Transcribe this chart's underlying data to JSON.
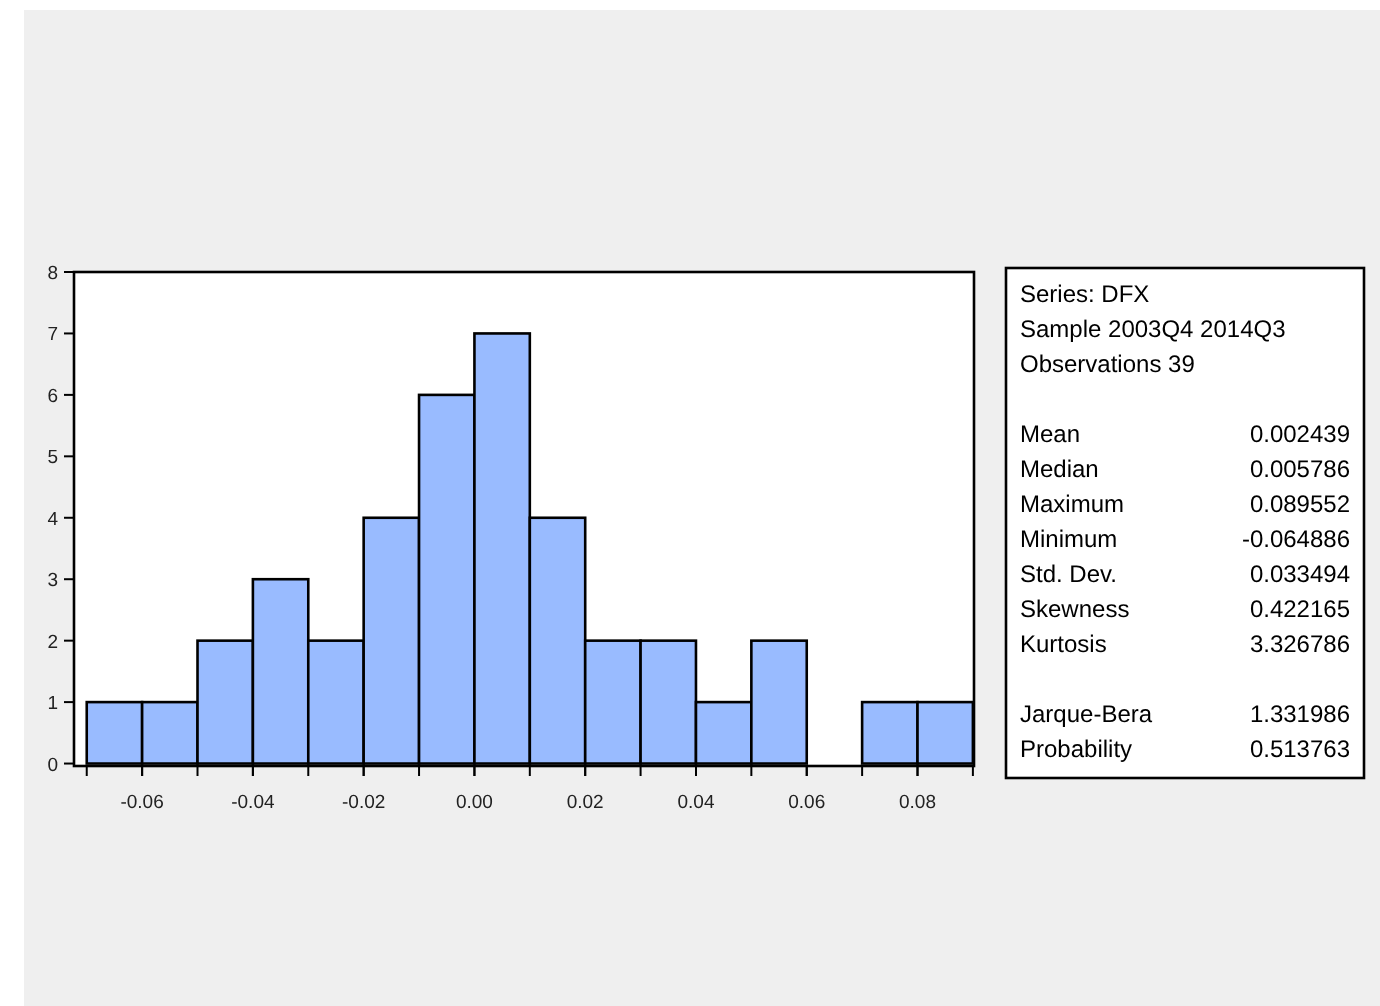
{
  "chart_data": {
    "type": "histogram",
    "bins": [
      -0.07,
      -0.06,
      -0.05,
      -0.04,
      -0.03,
      -0.02,
      -0.01,
      0,
      0.01,
      0.02,
      0.03,
      0.04,
      0.05,
      0.06,
      0.07,
      0.08,
      0.09
    ],
    "values": [
      1,
      1,
      2,
      3,
      2,
      4,
      6,
      7,
      4,
      2,
      2,
      1,
      2,
      0,
      1,
      1
    ],
    "color": "#99bbff",
    "xlim": [
      -0.0723,
      0.0902
    ],
    "xticks": [
      {
        "value": -0.06,
        "label": "-0.06"
      },
      {
        "value": -0.04,
        "label": "-0.04"
      },
      {
        "value": -0.02,
        "label": "-0.02"
      },
      {
        "value": 0,
        "label": "0.00"
      },
      {
        "value": 0.02,
        "label": "0.02"
      },
      {
        "value": 0.04,
        "label": "0.04"
      },
      {
        "value": 0.06,
        "label": "0.06"
      },
      {
        "value": 0.08,
        "label": "0.08"
      }
    ],
    "ylim": [
      -0.04,
      8
    ],
    "yticks": [
      0,
      1,
      2,
      3,
      4,
      5,
      6,
      7,
      8
    ],
    "grid": false,
    "annotations": [
      "Series: DFX",
      "Sample 2003Q4 2014Q3",
      "Observations 39",
      "Mean\t0.002439",
      "Median\t0.005786",
      "Maximum\t0.089552",
      "Minimum\t-0.064886",
      "Std. Dev.\t0.033494",
      "Skewness\t0.422165",
      "Kurtosis\t3.326786",
      "Jarque-Bera\t1.331986",
      "Probability\t0.513763"
    ]
  }
}
